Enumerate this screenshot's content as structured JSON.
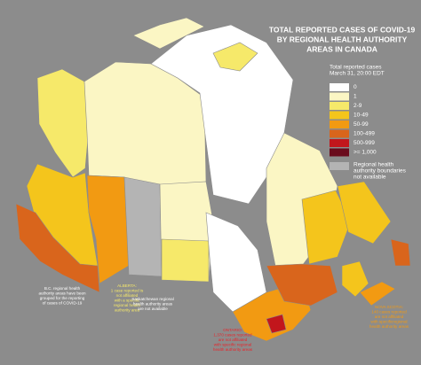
{
  "title": {
    "lines": [
      "TOTAL REPORTED CASES OF COVID-19",
      "BY REGIONAL HEALTH AUTHORITY",
      "AREAS IN CANADA"
    ]
  },
  "legend": {
    "title": [
      "Total reported cases",
      "March 31, 20:00 EDT"
    ],
    "items": [
      {
        "label": "0",
        "color": "#ffffff"
      },
      {
        "label": "1",
        "color": "#fbf6c4"
      },
      {
        "label": "2-9",
        "color": "#f6e96a"
      },
      {
        "label": "10-49",
        "color": "#f4c51c"
      },
      {
        "label": "50-99",
        "color": "#f29a12"
      },
      {
        "label": "100-499",
        "color": "#d9651c"
      },
      {
        "label": "500-999",
        "color": "#c2161c"
      },
      {
        "label": ">= 1,000",
        "color": "#6a0b1c"
      }
    ],
    "unavailable": {
      "lines": [
        "Regional health",
        "authority boundaries",
        "not available"
      ],
      "color": "#b4b4b4"
    }
  },
  "annotations": [
    {
      "lines": [
        "B.C. regional health",
        "authority areas have been",
        "grouped for the reporting",
        "of cases of COVID-19"
      ],
      "color": "#ffffff"
    },
    {
      "lines": [
        "ALBERTA:",
        "1 case reported is",
        "not affiliated",
        "with a specific",
        "regional health",
        "authority area"
      ],
      "color": "#f6e96a"
    },
    {
      "lines": [
        "Saskatchewan regional",
        "health authority areas",
        "are not available"
      ],
      "color": "#ffffff"
    },
    {
      "lines": [
        "ONTARIO:",
        "1,370 cases reported",
        "are not affiliated",
        "with specific regional",
        "health authority areas"
      ],
      "color": "#e8242a"
    },
    {
      "lines": [
        "NOVA SCOTIA:",
        "140 cases reported",
        "are not affiliated",
        "with specificregional",
        "health authority areas"
      ],
      "color": "#f29a12"
    }
  ]
}
